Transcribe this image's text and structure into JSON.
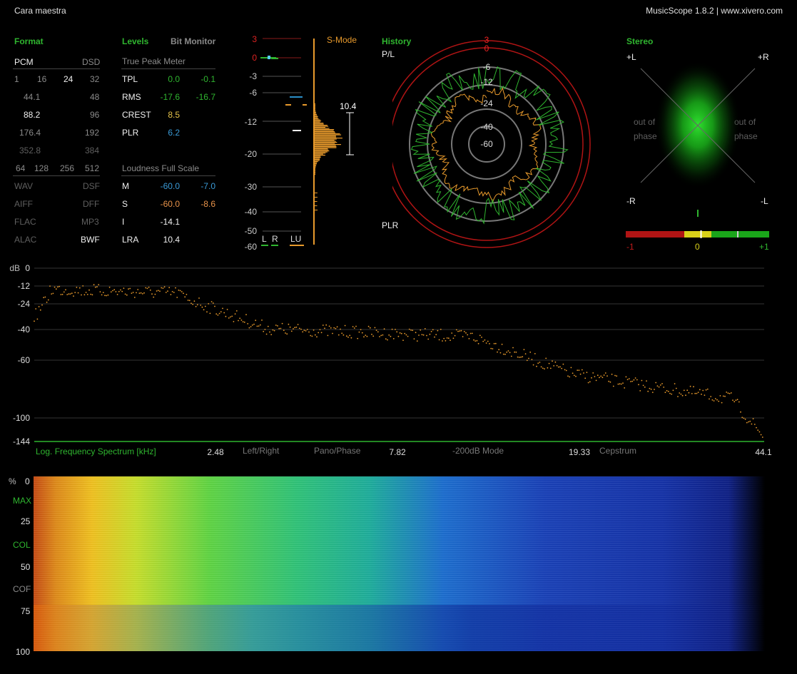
{
  "window": {
    "track_title": "Cara maestra",
    "app_info": "MusicScope 1.8.2 | www.xivero.com"
  },
  "format": {
    "title": "Format",
    "pcm": "PCM",
    "dsd": "DSD",
    "bits": [
      "1",
      "16",
      "24",
      "32"
    ],
    "rates": [
      [
        "44.1",
        "48"
      ],
      [
        "88.2",
        "96"
      ],
      [
        "176.4",
        "192"
      ],
      [
        "352.8",
        "384"
      ]
    ],
    "dsd_rates": [
      "64",
      "128",
      "256",
      "512"
    ],
    "containers": [
      [
        "WAV",
        "DSF"
      ],
      [
        "AIFF",
        "DFF"
      ],
      [
        "FLAC",
        "MP3"
      ],
      [
        "ALAC",
        "BWF"
      ]
    ]
  },
  "levels": {
    "title": "Levels",
    "bit_monitor": "Bit Monitor",
    "true_peak_meter": "True Peak Meter",
    "rows": [
      {
        "label": "TPL",
        "l": "0.0",
        "r": "-0.1"
      },
      {
        "label": "RMS",
        "l": "-17.6",
        "r": "-16.7"
      },
      {
        "label": "CREST",
        "l": "8.5"
      },
      {
        "label": "PLR",
        "l": "6.2"
      }
    ],
    "loudness_title": "Loudness Full Scale",
    "loudness": [
      {
        "label": "M",
        "a": "-60.0",
        "b": "-7.0"
      },
      {
        "label": "S",
        "a": "-60.0",
        "b": "-8.6"
      },
      {
        "label": "I",
        "a": "-14.1"
      },
      {
        "label": "LRA",
        "a": "10.4"
      }
    ]
  },
  "meter": {
    "mode": "S-Mode",
    "scale": [
      "3",
      "0",
      "-3",
      "-6",
      "-12",
      "-20",
      "-30",
      "-40",
      "-50",
      "-60"
    ],
    "lra_value": "10.4",
    "bottom_labels": [
      "L",
      "R",
      "LU"
    ]
  },
  "history": {
    "title": "History",
    "top_label": "P/L",
    "bottom_label": "PLR",
    "rings": [
      "3",
      "0",
      "-6",
      "-12",
      "-24",
      "-40",
      "-60"
    ]
  },
  "stereo": {
    "title": "Stereo",
    "corners": {
      "tl": "+L",
      "tr": "+R",
      "bl": "-R",
      "br": "-L"
    },
    "out_of_phase": [
      "out of",
      "phase"
    ],
    "correlation_scale": [
      "-1",
      "0",
      "+1"
    ],
    "correlation_value": 0.05
  },
  "spectrum": {
    "db_unit": "dB",
    "db_scale": [
      "0",
      "-12",
      "-24",
      "-40",
      "-60",
      "-100",
      "-144"
    ],
    "title": "Log. Frequency Spectrum [kHz]",
    "freq_labels": [
      "2.48",
      "7.82",
      "19.33",
      "44.1"
    ],
    "modes": [
      "Left/Right",
      "Pano/Phase",
      "-200dB Mode",
      "Cepstrum"
    ]
  },
  "spectrogram": {
    "scale": [
      "%",
      "0",
      "MAX",
      "25",
      "COL",
      "50",
      "COF",
      "75",
      "100"
    ]
  },
  "colors": {
    "accent_green": "#2fb52f",
    "meter_orange": "#e89a2c",
    "ring_red": "#b01414",
    "value_blue": "#3a9ad6"
  }
}
